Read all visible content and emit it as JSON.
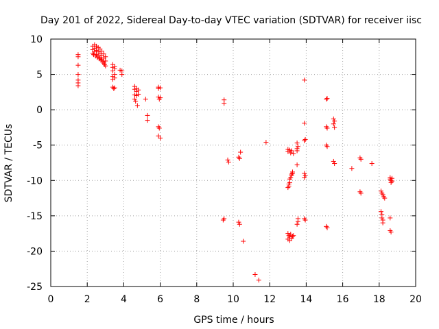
{
  "chart_data": {
    "type": "scatter",
    "title": "Day 201 of 2022, Sidereal Day-to-day VTEC variation (SDTVAR) for receiver iisc",
    "xlabel": "GPS time / hours",
    "ylabel": "SDTVAR / TECUs",
    "xlim": [
      0,
      20
    ],
    "ylim": [
      -25,
      10
    ],
    "xticks": [
      0,
      2,
      4,
      6,
      8,
      10,
      12,
      14,
      16,
      18,
      20
    ],
    "yticks": [
      10,
      5,
      0,
      -5,
      -10,
      -15,
      -20,
      -25
    ],
    "xtick_labels": [
      "0",
      "2",
      "4",
      "6",
      "8",
      "10",
      "12",
      "14",
      "16",
      "18",
      "20"
    ],
    "ytick_labels": [
      "10",
      "5",
      "0",
      "-5",
      "-10",
      "-15",
      "-20",
      "-25"
    ],
    "grid": true,
    "marker": "plus",
    "color": "#ff0000",
    "series": [
      {
        "name": "SDTVAR",
        "points": [
          [
            1.5,
            7.8
          ],
          [
            1.5,
            7.5
          ],
          [
            1.5,
            6.3
          ],
          [
            1.5,
            5.0
          ],
          [
            1.5,
            4.2
          ],
          [
            1.5,
            3.8
          ],
          [
            1.5,
            3.4
          ],
          [
            2.3,
            9.0
          ],
          [
            2.3,
            8.5
          ],
          [
            2.3,
            8.0
          ],
          [
            2.35,
            7.8
          ],
          [
            2.4,
            9.2
          ],
          [
            2.4,
            8.7
          ],
          [
            2.4,
            8.2
          ],
          [
            2.45,
            7.6
          ],
          [
            2.5,
            9.0
          ],
          [
            2.5,
            8.4
          ],
          [
            2.5,
            7.8
          ],
          [
            2.55,
            7.4
          ],
          [
            2.6,
            8.8
          ],
          [
            2.6,
            8.2
          ],
          [
            2.6,
            7.6
          ],
          [
            2.65,
            7.2
          ],
          [
            2.7,
            8.6
          ],
          [
            2.7,
            8.0
          ],
          [
            2.7,
            7.4
          ],
          [
            2.75,
            7.0
          ],
          [
            2.8,
            8.3
          ],
          [
            2.8,
            7.7
          ],
          [
            2.8,
            7.1
          ],
          [
            2.85,
            6.8
          ],
          [
            2.9,
            7.9
          ],
          [
            2.9,
            7.3
          ],
          [
            2.9,
            6.6
          ],
          [
            2.95,
            6.4
          ],
          [
            3.0,
            7.5
          ],
          [
            3.0,
            6.9
          ],
          [
            3.0,
            6.2
          ],
          [
            3.4,
            6.4
          ],
          [
            3.4,
            6.0
          ],
          [
            3.4,
            5.5
          ],
          [
            3.4,
            4.7
          ],
          [
            3.4,
            4.3
          ],
          [
            3.4,
            3.2
          ],
          [
            3.45,
            3.0
          ],
          [
            3.5,
            6.1
          ],
          [
            3.5,
            5.8
          ],
          [
            3.5,
            5.0
          ],
          [
            3.5,
            4.5
          ],
          [
            3.5,
            3.1
          ],
          [
            3.8,
            5.6
          ],
          [
            3.9,
            5.5
          ],
          [
            3.9,
            5.0
          ],
          [
            4.6,
            3.3
          ],
          [
            4.6,
            2.9
          ],
          [
            4.6,
            2.1
          ],
          [
            4.6,
            1.5
          ],
          [
            4.65,
            1.2
          ],
          [
            4.7,
            3.0
          ],
          [
            4.7,
            2.6
          ],
          [
            4.7,
            2.0
          ],
          [
            4.75,
            0.6
          ],
          [
            4.8,
            2.8
          ],
          [
            4.8,
            2.2
          ],
          [
            5.2,
            1.5
          ],
          [
            5.3,
            -0.8
          ],
          [
            5.3,
            -1.5
          ],
          [
            5.9,
            3.2
          ],
          [
            5.9,
            3.0
          ],
          [
            5.9,
            1.8
          ],
          [
            5.95,
            1.5
          ],
          [
            6.0,
            3.1
          ],
          [
            6.0,
            1.7
          ],
          [
            5.9,
            -2.4
          ],
          [
            5.95,
            -2.6
          ],
          [
            5.9,
            -3.7
          ],
          [
            6.0,
            -4.0
          ],
          [
            9.5,
            1.4
          ],
          [
            9.5,
            0.9
          ],
          [
            9.5,
            -15.4
          ],
          [
            9.45,
            -15.6
          ],
          [
            9.7,
            -7.1
          ],
          [
            9.75,
            -7.4
          ],
          [
            10.3,
            -6.7
          ],
          [
            10.35,
            -6.9
          ],
          [
            10.4,
            -6.0
          ],
          [
            10.3,
            -15.9
          ],
          [
            10.35,
            -16.2
          ],
          [
            10.55,
            -18.6
          ],
          [
            11.2,
            -23.3
          ],
          [
            11.4,
            -24.1
          ],
          [
            11.8,
            -4.6
          ],
          [
            13.0,
            -5.6
          ],
          [
            13.0,
            -5.9
          ],
          [
            13.0,
            -11.0
          ],
          [
            13.0,
            -17.5
          ],
          [
            13.0,
            -18.3
          ],
          [
            13.05,
            -10.5
          ],
          [
            13.05,
            -10.8
          ],
          [
            13.05,
            -17.8
          ],
          [
            13.1,
            -5.7
          ],
          [
            13.1,
            -9.8
          ],
          [
            13.1,
            -10.3
          ],
          [
            13.1,
            -18.0
          ],
          [
            13.1,
            -18.5
          ],
          [
            13.15,
            -6.1
          ],
          [
            13.15,
            -9.6
          ],
          [
            13.15,
            -17.6
          ],
          [
            13.2,
            -5.8
          ],
          [
            13.2,
            -9.1
          ],
          [
            13.2,
            -9.3
          ],
          [
            13.2,
            -18.2
          ],
          [
            13.25,
            -8.8
          ],
          [
            13.25,
            -9.0
          ],
          [
            13.25,
            -17.9
          ],
          [
            13.3,
            -6.2
          ],
          [
            13.3,
            -17.8
          ],
          [
            13.5,
            -4.7
          ],
          [
            13.5,
            -5.5
          ],
          [
            13.5,
            -5.8
          ],
          [
            13.5,
            -7.8
          ],
          [
            13.5,
            -16.2
          ],
          [
            13.55,
            -5.2
          ],
          [
            13.55,
            -15.8
          ],
          [
            13.55,
            -15.4
          ],
          [
            13.9,
            4.2
          ],
          [
            13.9,
            -1.9
          ],
          [
            13.9,
            -4.4
          ],
          [
            13.95,
            -4.2
          ],
          [
            13.9,
            -9.0
          ],
          [
            13.9,
            -9.6
          ],
          [
            13.95,
            -9.3
          ],
          [
            13.9,
            -15.4
          ],
          [
            13.95,
            -15.6
          ],
          [
            15.1,
            1.5
          ],
          [
            15.15,
            1.6
          ],
          [
            15.1,
            -2.4
          ],
          [
            15.15,
            -2.6
          ],
          [
            15.1,
            -5.0
          ],
          [
            15.15,
            -5.2
          ],
          [
            15.1,
            -16.5
          ],
          [
            15.15,
            -16.7
          ],
          [
            15.5,
            -1.3
          ],
          [
            15.55,
            -1.6
          ],
          [
            15.5,
            -2.0
          ],
          [
            15.55,
            -2.5
          ],
          [
            15.5,
            -7.3
          ],
          [
            15.55,
            -7.6
          ],
          [
            16.5,
            -8.3
          ],
          [
            16.95,
            -6.8
          ],
          [
            17.0,
            -7.0
          ],
          [
            16.95,
            -11.6
          ],
          [
            17.0,
            -11.8
          ],
          [
            17.6,
            -7.6
          ],
          [
            18.1,
            -11.5
          ],
          [
            18.15,
            -11.8
          ],
          [
            18.2,
            -12.0
          ],
          [
            18.25,
            -12.3
          ],
          [
            18.3,
            -12.5
          ],
          [
            18.1,
            -14.4
          ],
          [
            18.15,
            -14.8
          ],
          [
            18.15,
            -15.3
          ],
          [
            18.2,
            -15.6
          ],
          [
            18.2,
            -16.0
          ],
          [
            18.6,
            -9.6
          ],
          [
            18.6,
            -9.8
          ],
          [
            18.65,
            -10.0
          ],
          [
            18.65,
            -10.3
          ],
          [
            18.7,
            -9.7
          ],
          [
            18.7,
            -10.1
          ],
          [
            18.6,
            -15.3
          ],
          [
            18.6,
            -17.1
          ],
          [
            18.65,
            -17.3
          ]
        ]
      }
    ]
  }
}
